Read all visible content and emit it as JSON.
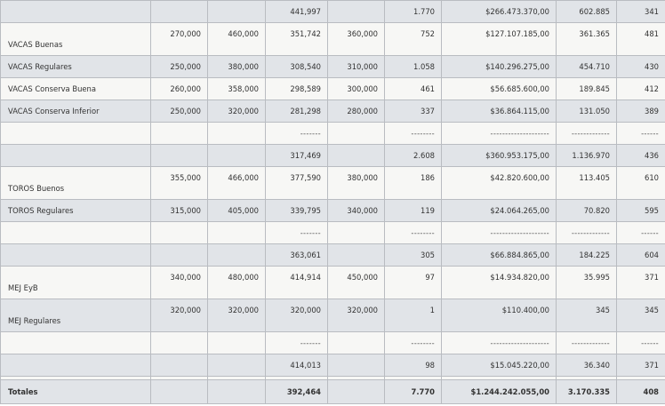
{
  "rows": [
    {
      "type": "sub",
      "style": "alt",
      "h": 25,
      "label": "",
      "v": [
        "",
        "",
        "441,997",
        "",
        "1.770",
        "$266.473.370,00",
        "602.885",
        "341"
      ]
    },
    {
      "type": "cat",
      "style": "std",
      "h": 37,
      "label": "VACAS Buenas",
      "v": [
        "270,000",
        "460,000",
        "351,742",
        "360,000",
        "752",
        "$127.107.185,00",
        "361.365",
        "481"
      ]
    },
    {
      "type": "cat",
      "style": "alt",
      "h": 25,
      "label": "VACAS Regulares",
      "v": [
        "250,000",
        "380,000",
        "308,540",
        "310,000",
        "1.058",
        "$140.296.275,00",
        "454.710",
        "430"
      ]
    },
    {
      "type": "cat",
      "style": "std",
      "h": 25,
      "label": "VACAS Conserva Buena",
      "v": [
        "260,000",
        "358,000",
        "298,589",
        "300,000",
        "461",
        "$56.685.600,00",
        "189.845",
        "412"
      ]
    },
    {
      "type": "cat",
      "style": "alt",
      "h": 25,
      "label": "VACAS Conserva Inferior",
      "v": [
        "250,000",
        "320,000",
        "281,298",
        "280,000",
        "337",
        "$36.864.115,00",
        "131.050",
        "389"
      ]
    },
    {
      "type": "sep",
      "style": "std",
      "h": 25,
      "label": "",
      "v": [
        "",
        "",
        "-------",
        "",
        "--------",
        "--------------------",
        "-------------",
        "------"
      ]
    },
    {
      "type": "sub",
      "style": "alt",
      "h": 25,
      "label": "",
      "v": [
        "",
        "",
        "317,469",
        "",
        "2.608",
        "$360.953.175,00",
        "1.136.970",
        "436"
      ]
    },
    {
      "type": "cat",
      "style": "std",
      "h": 37,
      "label": "TOROS Buenos",
      "v": [
        "355,000",
        "466,000",
        "377,590",
        "380,000",
        "186",
        "$42.820.600,00",
        "113.405",
        "610"
      ]
    },
    {
      "type": "cat",
      "style": "alt",
      "h": 25,
      "label": "TOROS Regulares",
      "v": [
        "315,000",
        "405,000",
        "339,795",
        "340,000",
        "119",
        "$24.064.265,00",
        "70.820",
        "595"
      ]
    },
    {
      "type": "sep",
      "style": "std",
      "h": 25,
      "label": "",
      "v": [
        "",
        "",
        "-------",
        "",
        "--------",
        "--------------------",
        "-------------",
        "------"
      ]
    },
    {
      "type": "sub",
      "style": "alt",
      "h": 25,
      "label": "",
      "v": [
        "",
        "",
        "363,061",
        "",
        "305",
        "$66.884.865,00",
        "184.225",
        "604"
      ]
    },
    {
      "type": "cat",
      "style": "std",
      "h": 37,
      "label": "MEJ EyB",
      "v": [
        "340,000",
        "480,000",
        "414,914",
        "450,000",
        "97",
        "$14.934.820,00",
        "35.995",
        "371"
      ]
    },
    {
      "type": "cat",
      "style": "alt",
      "h": 37,
      "label": "MEJ Regulares",
      "v": [
        "320,000",
        "320,000",
        "320,000",
        "320,000",
        "1",
        "$110.400,00",
        "345",
        "345"
      ]
    },
    {
      "type": "sep",
      "style": "std",
      "h": 25,
      "label": "",
      "v": [
        "",
        "",
        "-------",
        "",
        "--------",
        "--------------------",
        "-------------",
        "------"
      ]
    },
    {
      "type": "sub",
      "style": "alt",
      "h": 25,
      "label": "",
      "v": [
        "",
        "",
        "414,013",
        "",
        "98",
        "$15.045.220,00",
        "36.340",
        "371"
      ]
    },
    {
      "type": "gap",
      "style": "std",
      "h": 4,
      "label": "",
      "v": [
        "",
        "",
        "",
        "",
        "",
        "",
        "",
        ""
      ]
    },
    {
      "type": "total",
      "style": "alt",
      "h": 27,
      "label": "Totales",
      "v": [
        "",
        "",
        "392,464",
        "",
        "7.770",
        "$1.244.242.055,00",
        "3.170.335",
        "408"
      ]
    }
  ]
}
